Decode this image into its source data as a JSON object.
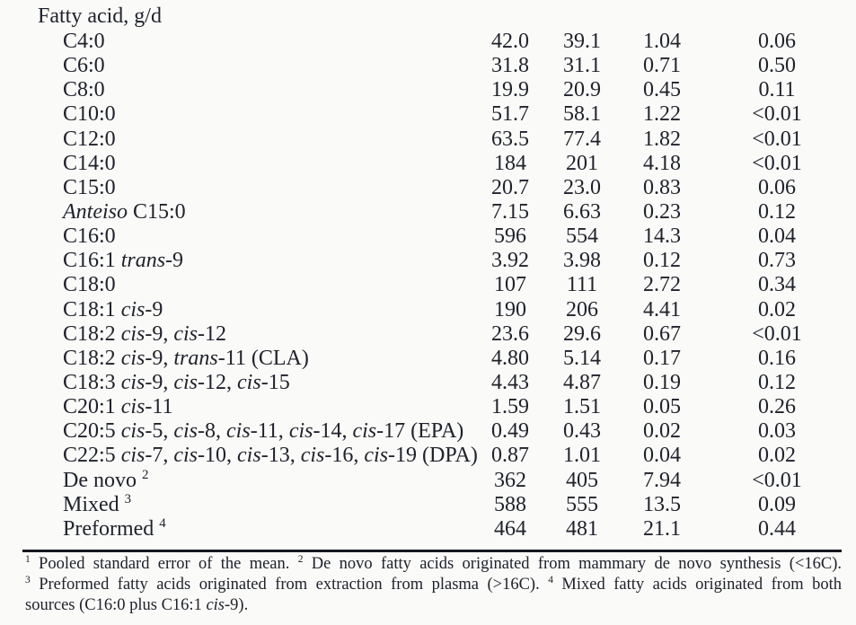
{
  "page": {
    "background": "#fafaf8",
    "text_color": "#20222c"
  },
  "table": {
    "section_header": "Fatty acid, g/d",
    "rows": [
      {
        "label": [
          [
            "C4:0",
            "n"
          ]
        ],
        "values": [
          "42.0",
          "39.1",
          "1.04",
          "0.06"
        ]
      },
      {
        "label": [
          [
            "C6:0",
            "n"
          ]
        ],
        "values": [
          "31.8",
          "31.1",
          "0.71",
          "0.50"
        ]
      },
      {
        "label": [
          [
            "C8:0",
            "n"
          ]
        ],
        "values": [
          "19.9",
          "20.9",
          "0.45",
          "0.11"
        ]
      },
      {
        "label": [
          [
            "C10:0",
            "n"
          ]
        ],
        "values": [
          "51.7",
          "58.1",
          "1.22",
          "<0.01"
        ]
      },
      {
        "label": [
          [
            "C12:0",
            "n"
          ]
        ],
        "values": [
          "63.5",
          "77.4",
          "1.82",
          "<0.01"
        ]
      },
      {
        "label": [
          [
            "C14:0",
            "n"
          ]
        ],
        "values": [
          "184",
          "201",
          "4.18",
          "<0.01"
        ]
      },
      {
        "label": [
          [
            "C15:0",
            "n"
          ]
        ],
        "values": [
          "20.7",
          "23.0",
          "0.83",
          "0.06"
        ]
      },
      {
        "label": [
          [
            "Anteiso",
            "i"
          ],
          [
            " C15:0",
            "n"
          ]
        ],
        "values": [
          "7.15",
          "6.63",
          "0.23",
          "0.12"
        ]
      },
      {
        "label": [
          [
            "C16:0",
            "n"
          ]
        ],
        "values": [
          "596",
          "554",
          "14.3",
          "0.04"
        ]
      },
      {
        "label": [
          [
            "C16:1 ",
            "n"
          ],
          [
            "trans",
            "i"
          ],
          [
            "-9",
            "n"
          ]
        ],
        "values": [
          "3.92",
          "3.98",
          "0.12",
          "0.73"
        ]
      },
      {
        "label": [
          [
            "C18:0",
            "n"
          ]
        ],
        "values": [
          "107",
          "111",
          "2.72",
          "0.34"
        ]
      },
      {
        "label": [
          [
            "C18:1 ",
            "n"
          ],
          [
            "cis",
            "i"
          ],
          [
            "-9",
            "n"
          ]
        ],
        "values": [
          "190",
          "206",
          "4.41",
          "0.02"
        ]
      },
      {
        "label": [
          [
            "C18:2 ",
            "n"
          ],
          [
            "cis",
            "i"
          ],
          [
            "-9, ",
            "n"
          ],
          [
            "cis",
            "i"
          ],
          [
            "-12",
            "n"
          ]
        ],
        "values": [
          "23.6",
          "29.6",
          "0.67",
          "<0.01"
        ]
      },
      {
        "label": [
          [
            "C18:2 ",
            "n"
          ],
          [
            "cis",
            "i"
          ],
          [
            "-9, ",
            "n"
          ],
          [
            "trans",
            "i"
          ],
          [
            "-11 (CLA)",
            "n"
          ]
        ],
        "values": [
          "4.80",
          "5.14",
          "0.17",
          "0.16"
        ]
      },
      {
        "label": [
          [
            "C18:3 ",
            "n"
          ],
          [
            "cis",
            "i"
          ],
          [
            "-9, ",
            "n"
          ],
          [
            "cis",
            "i"
          ],
          [
            "-12, ",
            "n"
          ],
          [
            "cis",
            "i"
          ],
          [
            "-15",
            "n"
          ]
        ],
        "values": [
          "4.43",
          "4.87",
          "0.19",
          "0.12"
        ]
      },
      {
        "label": [
          [
            "C20:1 ",
            "n"
          ],
          [
            "cis",
            "i"
          ],
          [
            "-11",
            "n"
          ]
        ],
        "values": [
          "1.59",
          "1.51",
          "0.05",
          "0.26"
        ]
      },
      {
        "label": [
          [
            "C20:5 ",
            "n"
          ],
          [
            "cis",
            "i"
          ],
          [
            "-5, ",
            "n"
          ],
          [
            "cis",
            "i"
          ],
          [
            "-8, ",
            "n"
          ],
          [
            "cis",
            "i"
          ],
          [
            "-11, ",
            "n"
          ],
          [
            "cis",
            "i"
          ],
          [
            "-14, ",
            "n"
          ],
          [
            "cis",
            "i"
          ],
          [
            "-17 (EPA)",
            "n"
          ]
        ],
        "values": [
          "0.49",
          "0.43",
          "0.02",
          "0.03"
        ]
      },
      {
        "label": [
          [
            "C22:5 ",
            "n"
          ],
          [
            "cis",
            "i"
          ],
          [
            "-7, ",
            "n"
          ],
          [
            "cis",
            "i"
          ],
          [
            "-10, ",
            "n"
          ],
          [
            "cis",
            "i"
          ],
          [
            "-13, ",
            "n"
          ],
          [
            "cis",
            "i"
          ],
          [
            "-16, ",
            "n"
          ],
          [
            "cis",
            "i"
          ],
          [
            "-19 (DPA)",
            "n"
          ]
        ],
        "values": [
          "0.87",
          "1.01",
          "0.04",
          "0.02"
        ]
      },
      {
        "label": [
          [
            "De novo ",
            "n"
          ],
          [
            "2",
            "sup"
          ]
        ],
        "values": [
          "362",
          "405",
          "7.94",
          "<0.01"
        ]
      },
      {
        "label": [
          [
            "Mixed ",
            "n"
          ],
          [
            "3",
            "sup"
          ]
        ],
        "values": [
          "588",
          "555",
          "13.5",
          "0.09"
        ]
      },
      {
        "label": [
          [
            "Preformed ",
            "n"
          ],
          [
            "4",
            "sup"
          ]
        ],
        "values": [
          "464",
          "481",
          "21.1",
          "0.44"
        ]
      }
    ]
  },
  "footnotes": {
    "lines": [
      [
        [
          "1",
          "sup"
        ],
        [
          " Pooled standard error of the mean. ",
          "n"
        ],
        [
          "2",
          "sup"
        ],
        [
          " De novo fatty acids originated from mammary de novo synthesis (<16C).",
          "n"
        ]
      ],
      [
        [
          "3",
          "sup"
        ],
        [
          " Preformed fatty acids originated from extraction from plasma (>16C). ",
          "n"
        ],
        [
          "4",
          "sup"
        ],
        [
          " Mixed fatty acids originated from both",
          "n"
        ]
      ],
      [
        [
          "sources (C16:0 plus C16:1 ",
          "n"
        ],
        [
          "cis",
          "i"
        ],
        [
          "-9).",
          "n"
        ]
      ]
    ]
  }
}
